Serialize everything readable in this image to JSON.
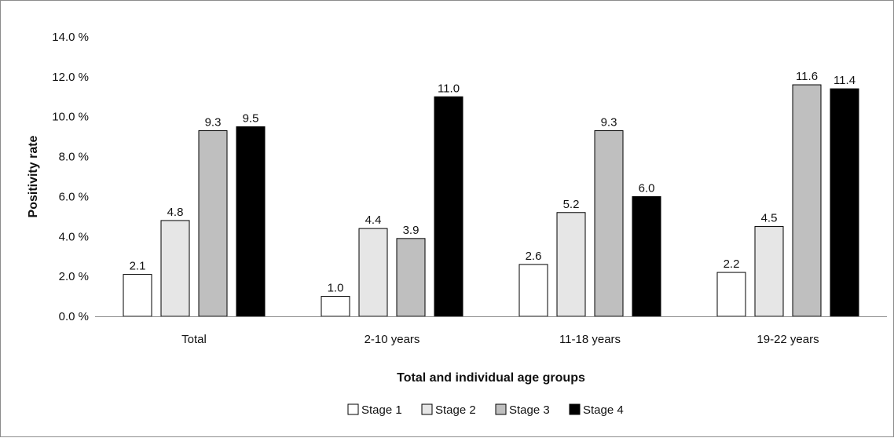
{
  "chart_data": {
    "type": "bar",
    "categories": [
      "Total",
      "2-10 years",
      "11-18 years",
      "19-22 years"
    ],
    "series": [
      {
        "name": "Stage 1",
        "color": "#ffffff",
        "values": [
          2.1,
          1.0,
          2.6,
          2.2
        ]
      },
      {
        "name": "Stage 2",
        "color": "#e6e6e6",
        "values": [
          4.8,
          4.4,
          5.2,
          4.5
        ]
      },
      {
        "name": "Stage 3",
        "color": "#bfbfbf",
        "values": [
          9.3,
          3.9,
          9.3,
          11.6
        ]
      },
      {
        "name": "Stage 4",
        "color": "#000000",
        "values": [
          9.5,
          11.0,
          6.0,
          11.4
        ]
      }
    ],
    "yticks": [
      "0.0 %",
      "2.0 %",
      "4.0 %",
      "6.0 %",
      "8.0 %",
      "10.0 %",
      "12.0 %",
      "14.0 %"
    ],
    "ylim": [
      0,
      14
    ],
    "xlabel": "Total and individual age groups",
    "ylabel": "Positivity rate",
    "legend_position": "bottom-center",
    "grid": false
  }
}
